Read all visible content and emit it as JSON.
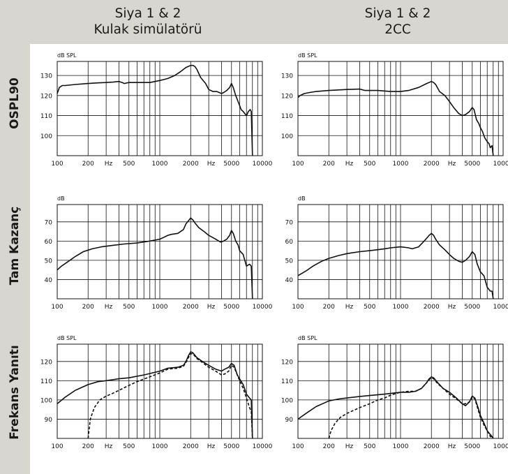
{
  "columns": [
    {
      "line1": "Siya 1 & 2",
      "line2": "Kulak simülatörü"
    },
    {
      "line1": "Siya 1 & 2",
      "line2": "2CC"
    }
  ],
  "rows": [
    "OSPL90",
    "Tam Kazanç",
    "Frekans Yanıtı"
  ],
  "colors": {
    "header_bg": "#d8d6d1",
    "curve": "#111111",
    "grid": "#111111"
  },
  "chart_data": [
    {
      "type": "line",
      "row": "OSPL90",
      "column": "Kulak simülatörü",
      "ylabel": "dB SPL",
      "xscale": "log",
      "xlim": [
        100,
        10000
      ],
      "ylim": [
        90,
        137
      ],
      "yticks": [
        100,
        110,
        120,
        130
      ],
      "xticks": [
        100,
        200,
        500,
        1000,
        2000,
        5000,
        10000
      ],
      "xtick_labels": [
        "100",
        "200",
        "500",
        "1000",
        "2000",
        "5000",
        "10000"
      ],
      "xunit_label": "Hz",
      "grid": true,
      "series": [
        {
          "style": "solid",
          "x": [
            100,
            105,
            112,
            120,
            150,
            200,
            250,
            300,
            350,
            400,
            430,
            450,
            500,
            600,
            700,
            800,
            900,
            1000,
            1100,
            1200,
            1400,
            1600,
            1800,
            2000,
            2100,
            2200,
            2300,
            2500,
            2800,
            3000,
            3300,
            3600,
            4000,
            4200,
            4500,
            4800,
            5000,
            5200,
            5500,
            6000,
            6200,
            6500,
            7000,
            7300,
            7600,
            7800,
            8000
          ],
          "y": [
            121,
            124,
            125,
            125,
            125.5,
            126,
            126.3,
            126.5,
            126.7,
            127,
            126.5,
            126,
            126.5,
            126.5,
            126.5,
            126.5,
            127,
            127.5,
            128,
            128.5,
            130,
            132,
            134,
            135,
            135,
            134.5,
            133,
            129,
            126,
            123,
            122,
            122,
            121,
            121.5,
            122.5,
            124,
            126,
            124,
            120,
            115,
            113,
            112,
            110,
            112,
            113,
            112,
            90
          ]
        }
      ]
    },
    {
      "type": "line",
      "row": "OSPL90",
      "column": "2CC",
      "ylabel": "dB SPL",
      "xscale": "log",
      "xlim": [
        100,
        10000
      ],
      "ylim": [
        90,
        137
      ],
      "yticks": [
        100,
        110,
        120,
        130
      ],
      "xticks": [
        100,
        200,
        500,
        1000,
        2000,
        5000,
        10000
      ],
      "xtick_labels": [
        "100",
        "200",
        "500",
        "1000",
        "2000",
        "5000",
        "10000"
      ],
      "xunit_label": "Hz",
      "grid": true,
      "series": [
        {
          "style": "solid",
          "x": [
            100,
            105,
            115,
            130,
            150,
            200,
            300,
            400,
            450,
            500,
            600,
            800,
            900,
            1000,
            1200,
            1500,
            1800,
            2000,
            2100,
            2200,
            2400,
            2700,
            3000,
            3300,
            3700,
            4000,
            4300,
            4700,
            5000,
            5200,
            5500,
            5800,
            6000,
            6300,
            6600,
            7000,
            7300,
            7500,
            7800,
            8000
          ],
          "y": [
            119,
            120,
            121,
            121.5,
            122,
            122.5,
            123,
            123.2,
            122.5,
            122.5,
            122.5,
            122,
            122,
            122,
            122.5,
            124,
            126,
            127,
            126.5,
            125.5,
            122,
            120,
            117,
            114,
            111,
            110,
            110.5,
            112,
            114,
            113,
            108,
            106,
            104,
            102,
            99,
            97,
            96,
            94,
            95,
            90
          ]
        }
      ]
    },
    {
      "type": "line",
      "row": "Tam Kazanç",
      "column": "Kulak simülatörü",
      "ylabel": "dB",
      "xscale": "log",
      "xlim": [
        100,
        10000
      ],
      "ylim": [
        30,
        79
      ],
      "yticks": [
        40,
        50,
        60,
        70
      ],
      "xticks": [
        100,
        200,
        500,
        1000,
        2000,
        5000,
        10000
      ],
      "xtick_labels": [
        "100",
        "200",
        "500",
        "1000",
        "2000",
        "5000",
        "10000"
      ],
      "xunit_label": "Hz",
      "grid": true,
      "series": [
        {
          "style": "solid",
          "x": [
            100,
            110,
            125,
            150,
            180,
            220,
            270,
            350,
            450,
            600,
            800,
            1000,
            1100,
            1200,
            1300,
            1500,
            1700,
            1800,
            1900,
            2000,
            2100,
            2200,
            2400,
            2700,
            3000,
            3500,
            3900,
            4200,
            4500,
            4800,
            5000,
            5200,
            5500,
            5800,
            6000,
            6500,
            7000,
            7500,
            7800,
            8000
          ],
          "y": [
            45,
            47,
            49,
            52,
            54.5,
            56,
            57,
            57.8,
            58.5,
            59,
            60,
            61,
            62,
            63,
            63.5,
            64,
            66,
            69,
            70.5,
            72,
            71,
            69.5,
            67,
            65,
            63,
            61,
            59.5,
            60,
            61,
            63,
            65.5,
            64,
            60,
            58,
            55,
            53,
            47,
            48,
            47,
            30
          ]
        }
      ]
    },
    {
      "type": "line",
      "row": "Tam Kazanç",
      "column": "2CC",
      "ylabel": "dB",
      "xscale": "log",
      "xlim": [
        100,
        10000
      ],
      "ylim": [
        30,
        79
      ],
      "yticks": [
        40,
        50,
        60,
        70
      ],
      "xticks": [
        100,
        200,
        500,
        1000,
        2000,
        5000,
        10000
      ],
      "xtick_labels": [
        "100",
        "200",
        "500",
        "1000",
        "2000",
        "5000",
        "10000"
      ],
      "xunit_label": "Hz",
      "grid": true,
      "series": [
        {
          "style": "solid",
          "x": [
            100,
            120,
            140,
            170,
            200,
            250,
            300,
            400,
            500,
            600,
            700,
            800,
            1000,
            1200,
            1300,
            1500,
            1700,
            1900,
            2000,
            2100,
            2200,
            2400,
            2700,
            3000,
            3300,
            3700,
            4000,
            4300,
            4700,
            5000,
            5300,
            5600,
            6000,
            6500,
            7000,
            7500,
            7800,
            8000
          ],
          "y": [
            42,
            44.5,
            47,
            49.5,
            51,
            52.5,
            53.5,
            54.5,
            55,
            55.5,
            56,
            56.5,
            57,
            56.5,
            56,
            57,
            60,
            63,
            64,
            63,
            61,
            58,
            55.5,
            53,
            51,
            49.5,
            49,
            50,
            52,
            54.5,
            53,
            48,
            44,
            42,
            36,
            34,
            34,
            30
          ]
        }
      ]
    },
    {
      "type": "line",
      "row": "Frekans Yanıtı",
      "column": "Kulak simülatörü",
      "ylabel": "dB SPL",
      "xscale": "log",
      "xlim": [
        100,
        10000
      ],
      "ylim": [
        80,
        129
      ],
      "yticks": [
        90,
        100,
        110,
        120
      ],
      "xticks": [
        100,
        200,
        500,
        1000,
        2000,
        5000,
        10000
      ],
      "xtick_labels": [
        "100",
        "200",
        "500",
        "1000",
        "2000",
        "5000",
        "10000"
      ],
      "xunit_label": "Hz",
      "grid": true,
      "series": [
        {
          "style": "solid",
          "x": [
            100,
            120,
            150,
            200,
            250,
            300,
            400,
            500,
            700,
            1000,
            1200,
            1500,
            1700,
            1800,
            1900,
            2000,
            2100,
            2300,
            2600,
            3000,
            3500,
            4000,
            4300,
            4700,
            5000,
            5300,
            5700,
            6000,
            6500,
            7000,
            7500,
            7800,
            8000
          ],
          "y": [
            98,
            101.5,
            105,
            108,
            109.5,
            110,
            111,
            111.5,
            113,
            115,
            116.5,
            117,
            118,
            120,
            123,
            125,
            124.5,
            122,
            120,
            118,
            116,
            115,
            116,
            117,
            119,
            118,
            113,
            111,
            108,
            103,
            101,
            100,
            80
          ]
        },
        {
          "style": "dashed",
          "x": [
            200,
            210,
            230,
            260,
            300,
            350,
            400,
            500,
            600,
            800,
            1000,
            1200,
            1500,
            1700,
            1800,
            1900,
            2000,
            2100,
            2300,
            2600,
            3000,
            3500,
            4000,
            4300,
            4700,
            5000,
            5300,
            5700,
            6000,
            6500,
            7000,
            7500,
            7800,
            8000
          ],
          "y": [
            80,
            90,
            96,
            100,
            102,
            103.5,
            105,
            107.5,
            109.5,
            112,
            114,
            116,
            116.5,
            117.5,
            119.5,
            122,
            124,
            124,
            121.5,
            119.5,
            117,
            115,
            113,
            113.5,
            115,
            118,
            117,
            113,
            110,
            106,
            101,
            96,
            94,
            80
          ]
        }
      ]
    },
    {
      "type": "line",
      "row": "Frekans Yanıtı",
      "column": "2CC",
      "ylabel": "dB SPL",
      "xscale": "log",
      "xlim": [
        100,
        10000
      ],
      "ylim": [
        80,
        129
      ],
      "yticks": [
        90,
        100,
        110,
        120
      ],
      "xticks": [
        100,
        200,
        500,
        1000,
        2000,
        5000,
        10000
      ],
      "xtick_labels": [
        "100",
        "200",
        "500",
        "1000",
        "2000",
        "5000",
        "10000"
      ],
      "xunit_label": "Hz",
      "grid": true,
      "series": [
        {
          "style": "solid",
          "x": [
            100,
            120,
            150,
            200,
            250,
            300,
            400,
            500,
            700,
            1000,
            1200,
            1400,
            1600,
            1800,
            1900,
            2000,
            2100,
            2300,
            2600,
            3000,
            3500,
            4000,
            4300,
            4700,
            5000,
            5300,
            5700,
            6000,
            6500,
            7000,
            7500,
            7800,
            8000
          ],
          "y": [
            90,
            93,
            96.5,
            99.5,
            100.5,
            101,
            101.8,
            102.3,
            103,
            104,
            104,
            104.5,
            106,
            109,
            111,
            112,
            111.5,
            109,
            106,
            104,
            101,
            98,
            97,
            99,
            102,
            101,
            96,
            92,
            88,
            84,
            82,
            81,
            80
          ]
        },
        {
          "style": "dashed",
          "x": [
            200,
            210,
            230,
            260,
            300,
            400,
            500,
            600,
            700,
            800,
            1000,
            1200,
            1400,
            1600,
            1800,
            1900,
            2000,
            2100,
            2300,
            2600,
            3000,
            3500,
            4000,
            4300,
            4700,
            5000,
            5300,
            5700,
            6000,
            6500,
            7000,
            7500,
            7800,
            8000
          ],
          "y": [
            80,
            84,
            88,
            91,
            93,
            96,
            98,
            100,
            101,
            102.5,
            104,
            104.5,
            104.5,
            106,
            109,
            110.5,
            111.5,
            111,
            108.5,
            106,
            103,
            100.5,
            98,
            98,
            99,
            101.5,
            100.5,
            95,
            91,
            87,
            84,
            81,
            80.5,
            80
          ]
        }
      ]
    }
  ]
}
